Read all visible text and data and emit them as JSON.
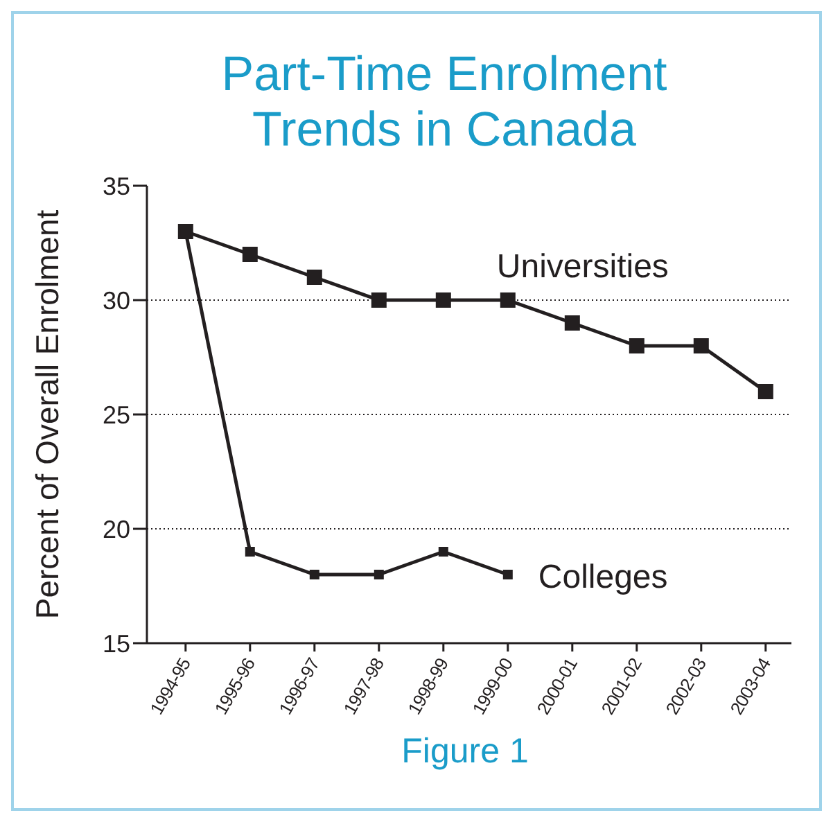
{
  "chart_data": {
    "type": "line",
    "title": "Part-Time Enrolment Trends in Canada",
    "ylabel": "Percent of Overall Enrolment",
    "annotations": [
      "Figure 1"
    ],
    "categories": [
      "1994-95",
      "1995-96",
      "1996-97",
      "1997-98",
      "1998-99",
      "1999-00",
      "2000-01",
      "2001-02",
      "2002-03",
      "2003-04"
    ],
    "series": [
      {
        "name": "Universities",
        "color": "#231f20",
        "values": [
          33,
          32,
          31,
          30,
          30,
          30,
          29,
          28,
          28,
          26
        ]
      },
      {
        "name": "Colleges",
        "color": "#231f20",
        "values": [
          33,
          19,
          18,
          18,
          19,
          18,
          null,
          null,
          null,
          null
        ]
      }
    ],
    "ylim": [
      15,
      35
    ],
    "yticks": [
      15,
      20,
      25,
      30,
      35
    ],
    "grid": "y",
    "legend": false,
    "marker": "square",
    "line_style": "solid"
  }
}
